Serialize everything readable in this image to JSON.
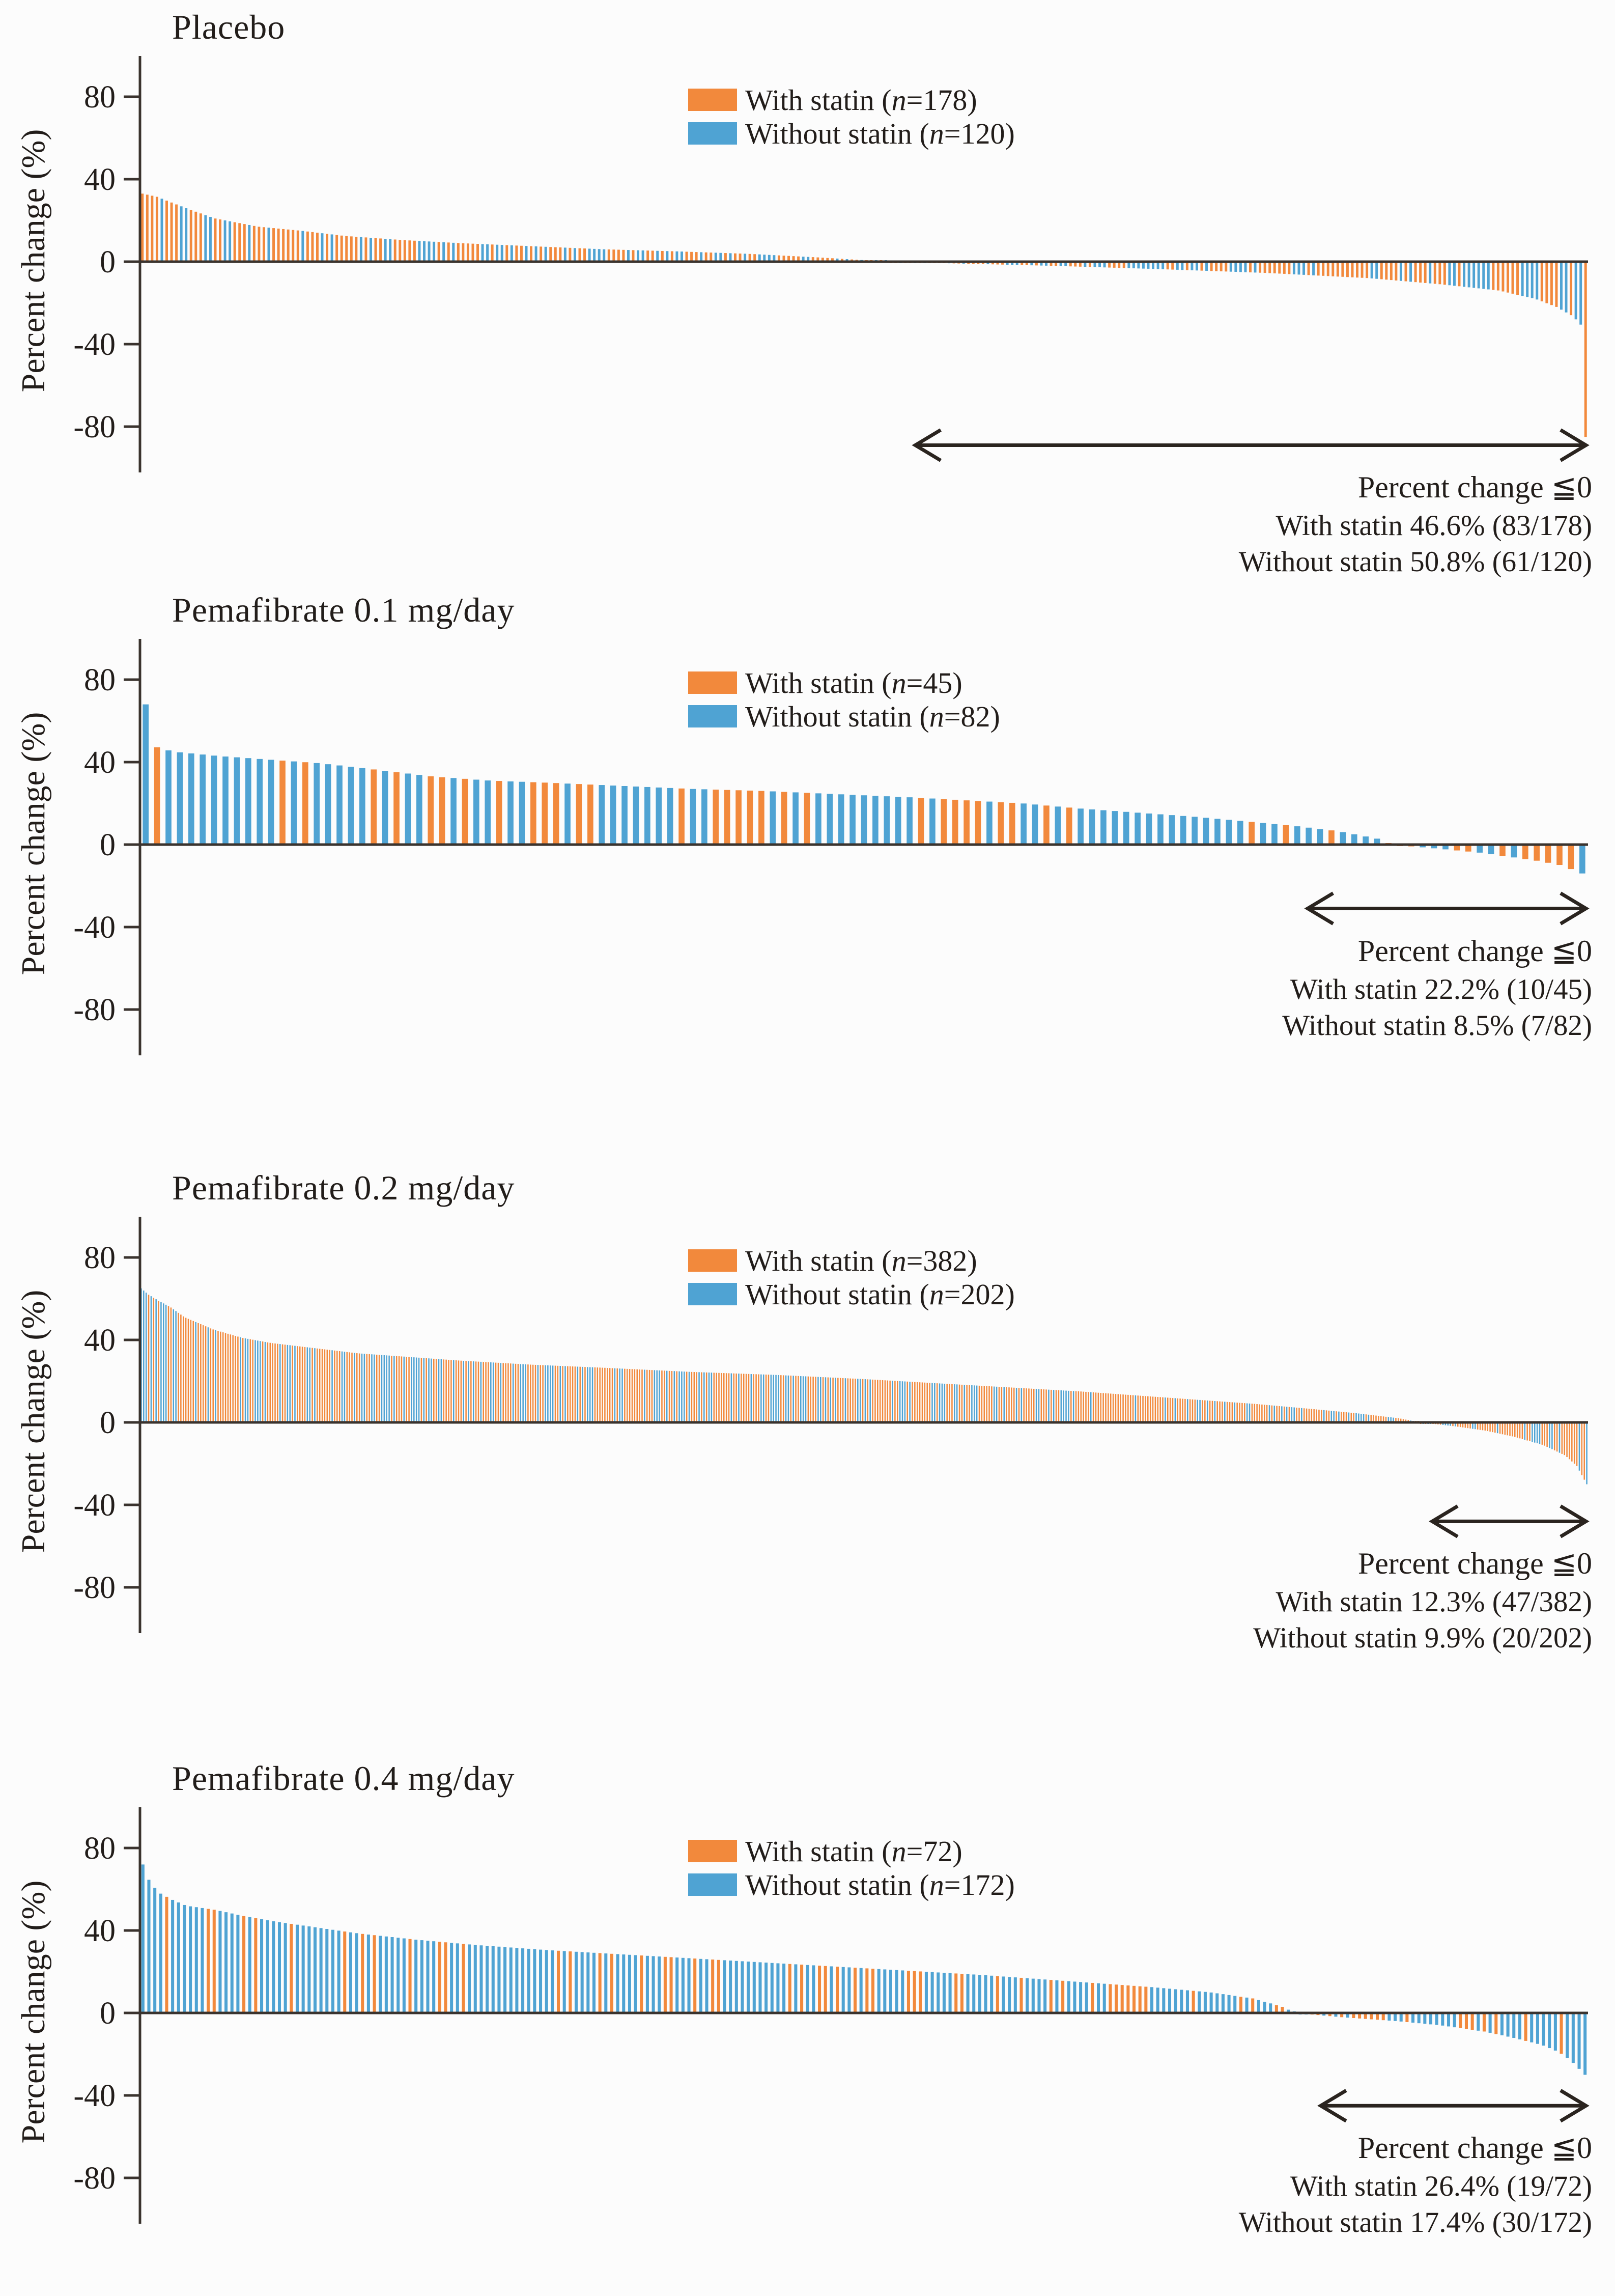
{
  "axis": {
    "ylabel": "Percent change (%)",
    "tick_values": [
      80,
      40,
      0,
      -40,
      -80
    ],
    "tick_labels": [
      "80",
      "40",
      "0",
      "-40",
      "-80"
    ],
    "ylim": [
      -102,
      100
    ],
    "grid": "off",
    "legend_position": "top-center"
  },
  "colors": {
    "with_statin": "#F2893C",
    "without_statin": "#4FA3D3",
    "axis": "#3a332e",
    "text": "#221d1a"
  },
  "chart_data": [
    {
      "type": "bar",
      "title": "Placebo",
      "series": [
        {
          "name": "With statin",
          "n": 178,
          "color_key": "with_statin"
        },
        {
          "name": "Without statin",
          "n": 120,
          "color_key": "without_statin"
        }
      ],
      "legend": {
        "with": {
          "pre": "With statin (",
          "n": "n",
          "post": "=178)"
        },
        "without": {
          "pre": "Without statin (",
          "n": "n",
          "post": "=120)"
        }
      },
      "annotation_label": "Percent change ≦0",
      "with_line": "With statin 46.6% (83/178)",
      "without_line": "Without statin 50.8% (61/120)",
      "leq0_counts": {
        "with_statin": 83,
        "without_statin": 61
      },
      "arrow_start_frac": 0.534,
      "arrow_value": -89,
      "envelope": [
        [
          0,
          33
        ],
        [
          0.01,
          31.5
        ],
        [
          0.03,
          26
        ],
        [
          0.05,
          21
        ],
        [
          0.08,
          17
        ],
        [
          0.11,
          15
        ],
        [
          0.14,
          12.5
        ],
        [
          0.18,
          10.5
        ],
        [
          0.22,
          9
        ],
        [
          0.27,
          7.5
        ],
        [
          0.32,
          6
        ],
        [
          0.37,
          5
        ],
        [
          0.42,
          3.8
        ],
        [
          0.47,
          2
        ],
        [
          0.517,
          0
        ],
        [
          0.56,
          -0.8
        ],
        [
          0.63,
          -2
        ],
        [
          0.7,
          -3.5
        ],
        [
          0.78,
          -5.5
        ],
        [
          0.85,
          -8
        ],
        [
          0.9,
          -11
        ],
        [
          0.94,
          -14
        ],
        [
          0.965,
          -18
        ],
        [
          0.98,
          -22
        ],
        [
          0.99,
          -26
        ],
        [
          0.9966,
          -30
        ],
        [
          1,
          -85
        ]
      ],
      "first_colors": [
        "orange",
        "orange",
        "orange",
        "orange",
        "blue",
        "orange"
      ],
      "last_colors": [
        "blue",
        "orange"
      ]
    },
    {
      "type": "bar",
      "title": "Pemafibrate 0.1 mg/day",
      "series": [
        {
          "name": "With statin",
          "n": 45,
          "color_key": "with_statin"
        },
        {
          "name": "Without statin",
          "n": 82,
          "color_key": "without_statin"
        }
      ],
      "legend": {
        "with": {
          "pre": "With statin (",
          "n": "n",
          "post": "=45)"
        },
        "without": {
          "pre": "Without statin (",
          "n": "n",
          "post": "=82)"
        }
      },
      "annotation_label": "Percent change ≦0",
      "with_line": "With statin 22.2% (10/45)",
      "without_line": "Without statin 8.5% (7/82)",
      "leq0_counts": {
        "with_statin": 10,
        "without_statin": 7
      },
      "arrow_start_frac": 0.805,
      "arrow_value": -31,
      "envelope": [
        [
          0,
          68
        ],
        [
          0.008,
          47
        ],
        [
          0.02,
          45
        ],
        [
          0.05,
          43
        ],
        [
          0.09,
          41
        ],
        [
          0.12,
          39.5
        ],
        [
          0.14,
          38
        ],
        [
          0.17,
          35.5
        ],
        [
          0.2,
          33
        ],
        [
          0.24,
          31
        ],
        [
          0.28,
          30
        ],
        [
          0.33,
          28.5
        ],
        [
          0.38,
          27
        ],
        [
          0.43,
          26
        ],
        [
          0.48,
          24.5
        ],
        [
          0.53,
          23
        ],
        [
          0.57,
          21.5
        ],
        [
          0.61,
          20
        ],
        [
          0.65,
          17.5
        ],
        [
          0.69,
          15.5
        ],
        [
          0.73,
          13.5
        ],
        [
          0.77,
          11
        ],
        [
          0.8,
          9
        ],
        [
          0.83,
          6.5
        ],
        [
          0.86,
          2.5
        ],
        [
          0.866,
          0
        ],
        [
          0.9,
          -2
        ],
        [
          0.93,
          -4
        ],
        [
          0.95,
          -6
        ],
        [
          0.97,
          -8
        ],
        [
          0.985,
          -10
        ],
        [
          1,
          -14
        ]
      ],
      "first_colors": [
        "blue",
        "orange",
        "blue",
        "blue",
        "blue",
        "blue"
      ],
      "last_colors": [
        "blue"
      ]
    },
    {
      "type": "bar",
      "title": "Pemafibrate 0.2 mg/day",
      "series": [
        {
          "name": "With statin",
          "n": 382,
          "color_key": "with_statin"
        },
        {
          "name": "Without statin",
          "n": 202,
          "color_key": "without_statin"
        }
      ],
      "legend": {
        "with": {
          "pre": "With statin (",
          "n": "n",
          "post": "=382)"
        },
        "without": {
          "pre": "Without statin (",
          "n": "n",
          "post": "=202)"
        }
      },
      "annotation_label": "Percent change ≦0",
      "with_line": "With statin 12.3% (47/382)",
      "without_line": "Without statin 9.9% (20/202)",
      "leq0_counts": {
        "with_statin": 47,
        "without_statin": 20
      },
      "arrow_start_frac": 0.891,
      "arrow_value": -48,
      "envelope": [
        [
          0,
          65
        ],
        [
          0.005,
          62
        ],
        [
          0.012,
          59
        ],
        [
          0.02,
          56
        ],
        [
          0.03,
          51
        ],
        [
          0.05,
          45
        ],
        [
          0.07,
          41
        ],
        [
          0.09,
          38.5
        ],
        [
          0.12,
          36
        ],
        [
          0.15,
          33.5
        ],
        [
          0.18,
          32
        ],
        [
          0.22,
          30
        ],
        [
          0.27,
          28
        ],
        [
          0.32,
          26.5
        ],
        [
          0.38,
          24.5
        ],
        [
          0.44,
          23
        ],
        [
          0.5,
          21
        ],
        [
          0.55,
          19
        ],
        [
          0.6,
          17
        ],
        [
          0.65,
          15
        ],
        [
          0.69,
          13
        ],
        [
          0.73,
          11
        ],
        [
          0.77,
          9
        ],
        [
          0.81,
          6.5
        ],
        [
          0.84,
          4.5
        ],
        [
          0.87,
          2
        ],
        [
          0.885,
          0
        ],
        [
          0.91,
          -2
        ],
        [
          0.93,
          -4
        ],
        [
          0.95,
          -7
        ],
        [
          0.97,
          -11
        ],
        [
          0.985,
          -16
        ],
        [
          0.993,
          -21
        ],
        [
          1,
          -30
        ]
      ],
      "first_colors": [
        "blue",
        "blue",
        "blue",
        "orange"
      ],
      "last_colors": [
        "orange",
        "blue"
      ]
    },
    {
      "type": "bar",
      "title": "Pemafibrate 0.4 mg/day",
      "series": [
        {
          "name": "With statin",
          "n": 72,
          "color_key": "with_statin"
        },
        {
          "name": "Without statin",
          "n": 172,
          "color_key": "without_statin"
        }
      ],
      "legend": {
        "with": {
          "pre": "With statin (",
          "n": "n",
          "post": "=72)"
        },
        "without": {
          "pre": "Without statin (",
          "n": "n",
          "post": "=172)"
        }
      },
      "annotation_label": "Percent change ≦0",
      "with_line": "With statin 26.4% (19/72)",
      "without_line": "Without statin 17.4% (30/172)",
      "leq0_counts": {
        "with_statin": 19,
        "without_statin": 30
      },
      "arrow_start_frac": 0.814,
      "arrow_value": -45,
      "envelope": [
        [
          0,
          72
        ],
        [
          0.005,
          63
        ],
        [
          0.012,
          58
        ],
        [
          0.02,
          55
        ],
        [
          0.03,
          52
        ],
        [
          0.05,
          50
        ],
        [
          0.07,
          47
        ],
        [
          0.09,
          44.5
        ],
        [
          0.12,
          41.5
        ],
        [
          0.15,
          38.5
        ],
        [
          0.19,
          35.5
        ],
        [
          0.23,
          33
        ],
        [
          0.28,
          30.5
        ],
        [
          0.33,
          28.5
        ],
        [
          0.38,
          26.5
        ],
        [
          0.43,
          24.5
        ],
        [
          0.48,
          22.5
        ],
        [
          0.53,
          20.5
        ],
        [
          0.58,
          18.5
        ],
        [
          0.62,
          16.5
        ],
        [
          0.66,
          14.5
        ],
        [
          0.7,
          12.5
        ],
        [
          0.74,
          10
        ],
        [
          0.77,
          7
        ],
        [
          0.79,
          3
        ],
        [
          0.799,
          0
        ],
        [
          0.83,
          -2
        ],
        [
          0.87,
          -4
        ],
        [
          0.9,
          -6
        ],
        [
          0.93,
          -9
        ],
        [
          0.95,
          -12
        ],
        [
          0.97,
          -15.5
        ],
        [
          0.982,
          -19
        ],
        [
          0.99,
          -23
        ],
        [
          1,
          -30
        ]
      ],
      "first_colors": [
        "blue",
        "blue",
        "blue",
        "blue",
        "orange",
        "blue"
      ],
      "last_colors": [
        "blue",
        "blue"
      ]
    }
  ]
}
